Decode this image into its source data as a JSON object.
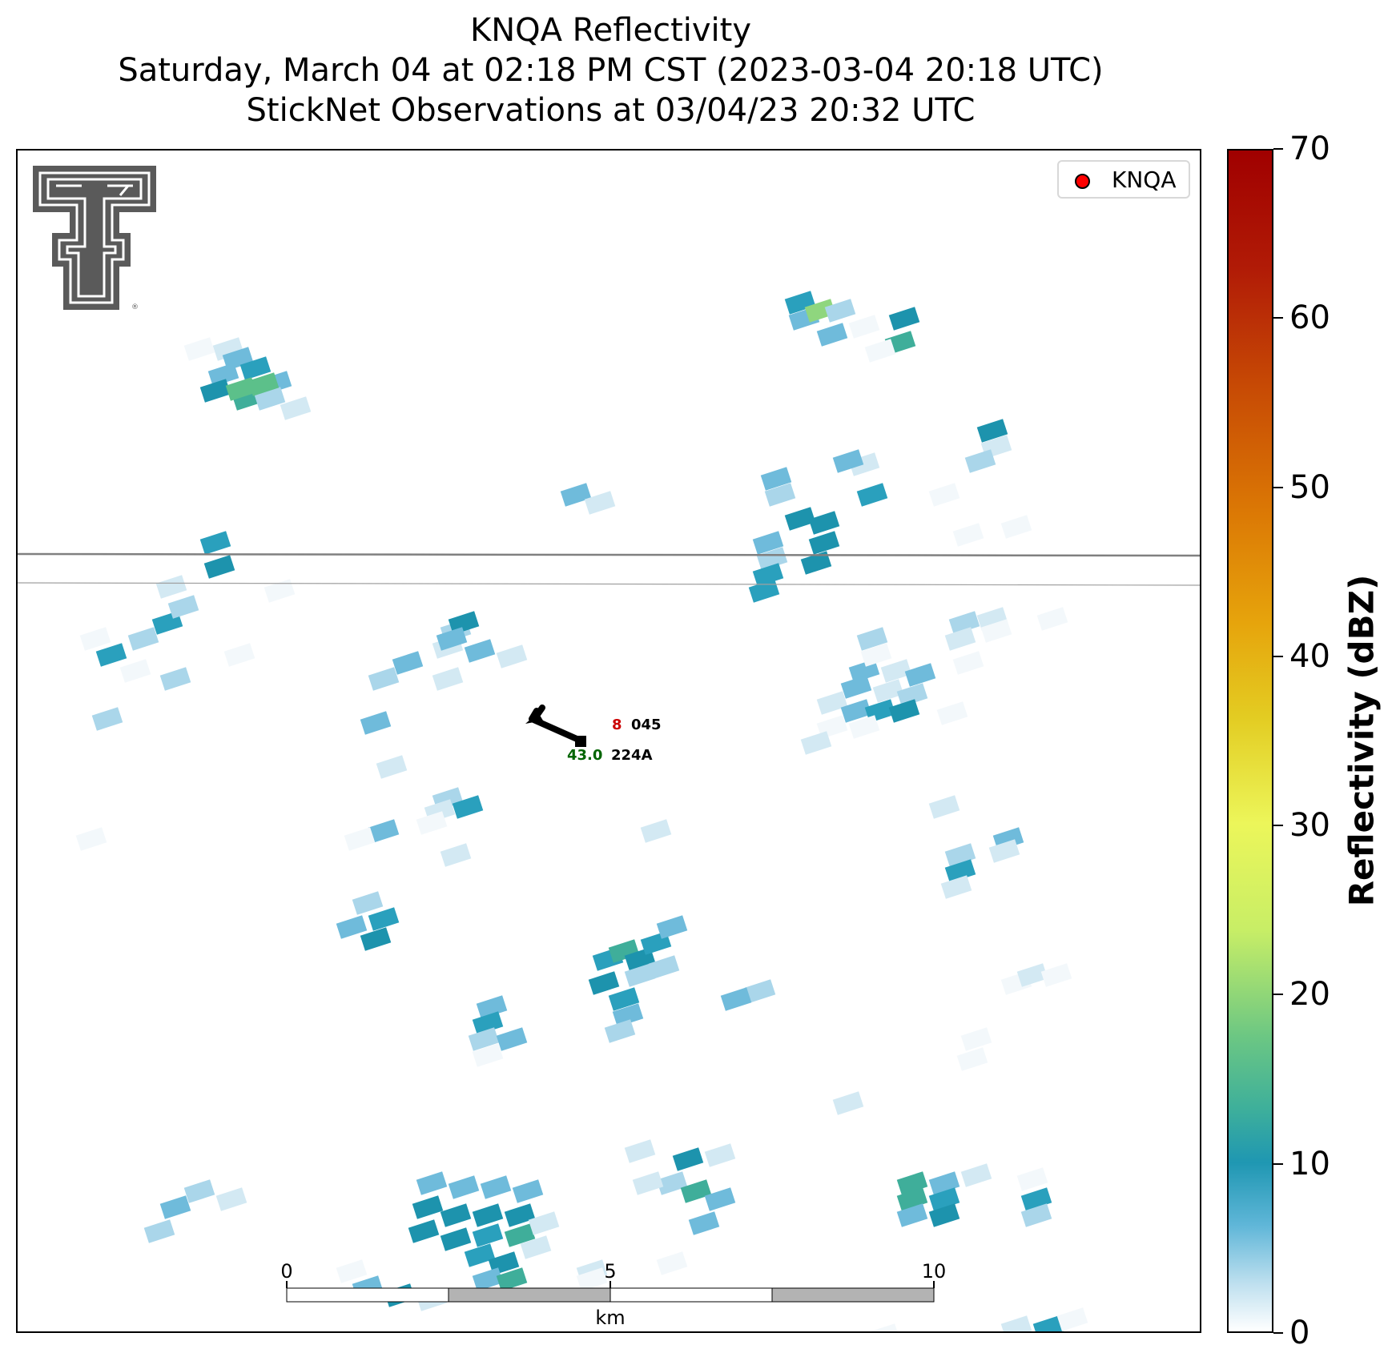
{
  "titles": {
    "line1": "KNQA Reflectivity",
    "line2": "Saturday, March 04 at 02:18 PM CST (2023-03-04 20:18 UTC)",
    "line3": "StickNet Observations at 03/04/23 20:32 UTC"
  },
  "legend": {
    "label": "KNQA",
    "marker_color": "#ff0000"
  },
  "colorbar": {
    "label": "Reflectivity (dBZ)",
    "ticks": [
      "0",
      "10",
      "20",
      "30",
      "40",
      "50",
      "60",
      "70"
    ],
    "range": [
      0,
      70
    ]
  },
  "scalebar": {
    "ticks": [
      "0",
      "5",
      "10"
    ],
    "unit": "km"
  },
  "station": {
    "id": "045",
    "name": "224A",
    "temp": "8",
    "dewpoint": "43.0",
    "temp_color": "#cc0000",
    "dewpoint_color": "#006400"
  },
  "logo": {
    "name": "Texas Tech Double T"
  }
}
